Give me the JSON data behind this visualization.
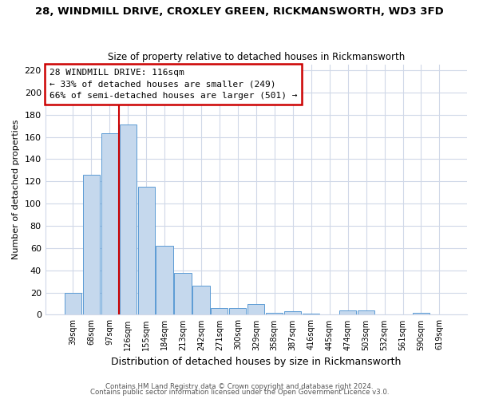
{
  "title": "28, WINDMILL DRIVE, CROXLEY GREEN, RICKMANSWORTH, WD3 3FD",
  "subtitle": "Size of property relative to detached houses in Rickmansworth",
  "xlabel": "Distribution of detached houses by size in Rickmansworth",
  "ylabel": "Number of detached properties",
  "bar_labels": [
    "39sqm",
    "68sqm",
    "97sqm",
    "126sqm",
    "155sqm",
    "184sqm",
    "213sqm",
    "242sqm",
    "271sqm",
    "300sqm",
    "329sqm",
    "358sqm",
    "387sqm",
    "416sqm",
    "445sqm",
    "474sqm",
    "503sqm",
    "532sqm",
    "561sqm",
    "590sqm",
    "619sqm"
  ],
  "bar_values": [
    20,
    126,
    163,
    171,
    115,
    62,
    38,
    26,
    6,
    6,
    10,
    2,
    3,
    1,
    0,
    4,
    4,
    0,
    0,
    2,
    0
  ],
  "bar_color": "#c5d8ed",
  "bar_edge_color": "#5b9bd5",
  "ylim": [
    0,
    225
  ],
  "yticks": [
    0,
    20,
    40,
    60,
    80,
    100,
    120,
    140,
    160,
    180,
    200,
    220
  ],
  "marker_bin_index": 3,
  "marker_color": "#cc0000",
  "annotation_title": "28 WINDMILL DRIVE: 116sqm",
  "annotation_line1": "← 33% of detached houses are smaller (249)",
  "annotation_line2": "66% of semi-detached houses are larger (501) →",
  "annotation_box_color": "#cc0000",
  "footnote1": "Contains HM Land Registry data © Crown copyright and database right 2024.",
  "footnote2": "Contains public sector information licensed under the Open Government Licence v3.0.",
  "background_color": "#ffffff",
  "grid_color": "#d0d8e8"
}
